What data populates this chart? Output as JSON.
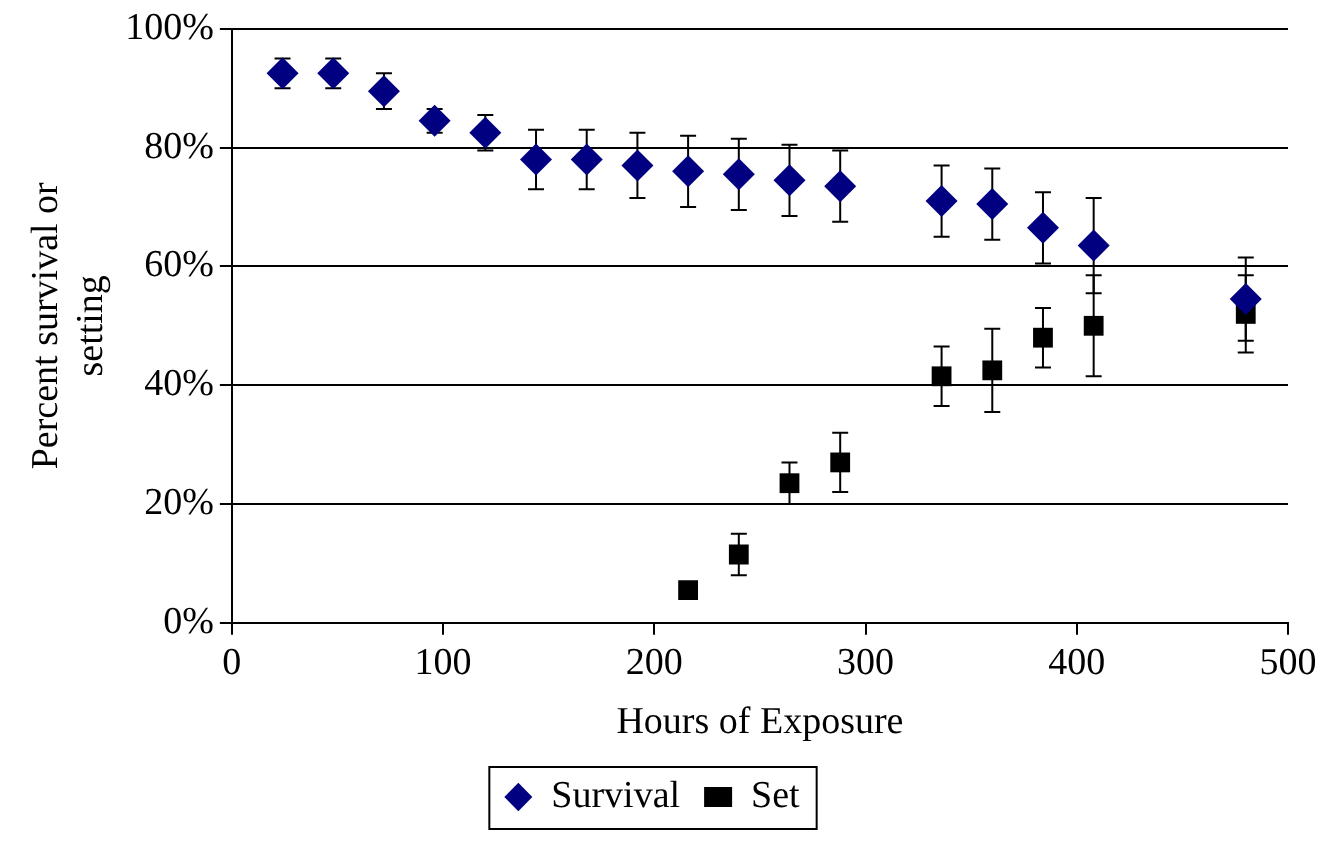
{
  "chart_data": {
    "type": "scatter",
    "xlabel": "Hours of Exposure",
    "ylabel": "Percent survival or setting",
    "xlim": [
      0,
      500
    ],
    "xticks": [
      0,
      100,
      200,
      300,
      400,
      500
    ],
    "ylim": [
      0,
      100
    ],
    "yticks": [
      {
        "value": 0,
        "label": "0%"
      },
      {
        "value": 20,
        "label": "20%"
      },
      {
        "value": 40,
        "label": "40%"
      },
      {
        "value": 60,
        "label": "60%"
      },
      {
        "value": 80,
        "label": "80%"
      },
      {
        "value": 100,
        "label": "100%"
      }
    ],
    "grid": "y",
    "legend": "bottom",
    "series": [
      {
        "name": "Survival",
        "color": "#000080",
        "marker": "diamond",
        "x": [
          24,
          48,
          72,
          96,
          120,
          144,
          168,
          192,
          216,
          240,
          264,
          288,
          336,
          360,
          384,
          408,
          480
        ],
        "values": [
          92.5,
          92.5,
          89.5,
          84.5,
          82.5,
          78,
          78,
          77,
          76,
          75.5,
          74.5,
          73.5,
          71,
          70.5,
          66.5,
          63.5,
          54.5
        ],
        "errors": [
          2.5,
          2.5,
          3,
          2,
          3,
          5,
          5,
          5.5,
          6,
          6,
          6,
          6,
          6,
          6,
          6,
          8,
          7
        ]
      },
      {
        "name": "Set",
        "color": "#000000",
        "marker": "square",
        "x": [
          216,
          240,
          264,
          288,
          336,
          360,
          384,
          408,
          480
        ],
        "values": [
          5.5,
          11.5,
          23.5,
          27,
          41.5,
          42.5,
          48,
          50,
          52
        ],
        "errors": [
          null,
          3.5,
          3.5,
          5,
          5,
          7,
          5,
          8.5,
          6.5
        ]
      }
    ]
  }
}
